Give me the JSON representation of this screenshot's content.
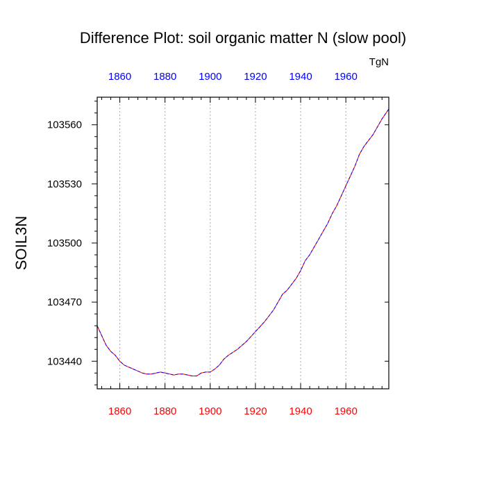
{
  "chart_data": {
    "type": "line",
    "title": "Difference Plot: soil organic matter N (slow pool)",
    "units_label": "TgN",
    "xlabel": "",
    "ylabel": "SOIL3N",
    "xlim": [
      1850,
      1979
    ],
    "ylim": [
      103426,
      103574
    ],
    "x_ticks": [
      1860,
      1880,
      1900,
      1920,
      1940,
      1960
    ],
    "x_tick_labels": [
      "1860",
      "1880",
      "1900",
      "1920",
      "1940",
      "1960"
    ],
    "y_ticks": [
      103440,
      103470,
      103500,
      103530,
      103560
    ],
    "y_tick_labels": [
      "103440",
      "103470",
      "103500",
      "103530",
      "103560"
    ],
    "grid": "vertical dotted at x ticks",
    "colors": {
      "bottom_axis_labels": "#ff0000",
      "top_axis_labels": "#0000ff",
      "series_1": "#ff0000",
      "series_2": "#0000ff",
      "grid": "#aaaaaa"
    },
    "series": [
      {
        "x": [
          1850,
          1852,
          1854,
          1856,
          1858,
          1860,
          1862,
          1864,
          1866,
          1868,
          1870,
          1872,
          1874,
          1876,
          1878,
          1880,
          1882,
          1884,
          1886,
          1888,
          1890,
          1892,
          1894,
          1896,
          1898,
          1900,
          1902,
          1904,
          1906,
          1908,
          1910,
          1912,
          1914,
          1916,
          1918,
          1920,
          1922,
          1924,
          1926,
          1928,
          1930,
          1932,
          1934,
          1936,
          1938,
          1940,
          1942,
          1944,
          1946,
          1948,
          1950,
          1952,
          1954,
          1956,
          1958,
          1960,
          1962,
          1964,
          1966,
          1968,
          1970,
          1972,
          1974,
          1976,
          1979
        ],
        "values": [
          103458,
          103453,
          103448,
          103445,
          103443,
          103440,
          103438,
          103437,
          103436,
          103435,
          103434,
          103433.5,
          103433.5,
          103434,
          103434.5,
          103434,
          103433.5,
          103433,
          103433.5,
          103433.5,
          103433,
          103432.5,
          103432.5,
          103434,
          103434.5,
          103434.5,
          103436,
          103438,
          103441,
          103443,
          103444.5,
          103446,
          103448,
          103450,
          103452.5,
          103455,
          103457.5,
          103460,
          103463,
          103466,
          103470,
          103474,
          103476,
          103479,
          103482,
          103486,
          103491,
          103494,
          103498,
          103502,
          103506,
          103510,
          103515,
          103519,
          103524,
          103529,
          103534,
          103539,
          103545,
          103549,
          103552,
          103555,
          103559,
          103563,
          103568
        ]
      },
      {
        "x": [
          1850,
          1852,
          1854,
          1856,
          1858,
          1860,
          1862,
          1864,
          1866,
          1868,
          1870,
          1872,
          1874,
          1876,
          1878,
          1880,
          1882,
          1884,
          1886,
          1888,
          1890,
          1892,
          1894,
          1896,
          1898,
          1900,
          1902,
          1904,
          1906,
          1908,
          1910,
          1912,
          1914,
          1916,
          1918,
          1920,
          1922,
          1924,
          1926,
          1928,
          1930,
          1932,
          1934,
          1936,
          1938,
          1940,
          1942,
          1944,
          1946,
          1948,
          1950,
          1952,
          1954,
          1956,
          1958,
          1960,
          1962,
          1964,
          1966,
          1968,
          1970,
          1972,
          1974,
          1976,
          1979
        ],
        "values": [
          103458,
          103453,
          103448,
          103445,
          103443,
          103440,
          103438,
          103437,
          103436,
          103435,
          103434,
          103433.5,
          103433.5,
          103434,
          103434.5,
          103434,
          103433.5,
          103433,
          103433.5,
          103433.5,
          103433,
          103432.5,
          103432.5,
          103434,
          103434.5,
          103434.5,
          103436,
          103438,
          103441,
          103443,
          103444.5,
          103446,
          103448,
          103450,
          103452.5,
          103455,
          103457.5,
          103460,
          103463,
          103466,
          103470,
          103474,
          103476,
          103479,
          103482,
          103486,
          103491,
          103494,
          103498,
          103502,
          103506,
          103510,
          103515,
          103519,
          103524,
          103529,
          103534,
          103539,
          103545,
          103549,
          103552,
          103555,
          103559,
          103563,
          103568
        ]
      }
    ]
  }
}
